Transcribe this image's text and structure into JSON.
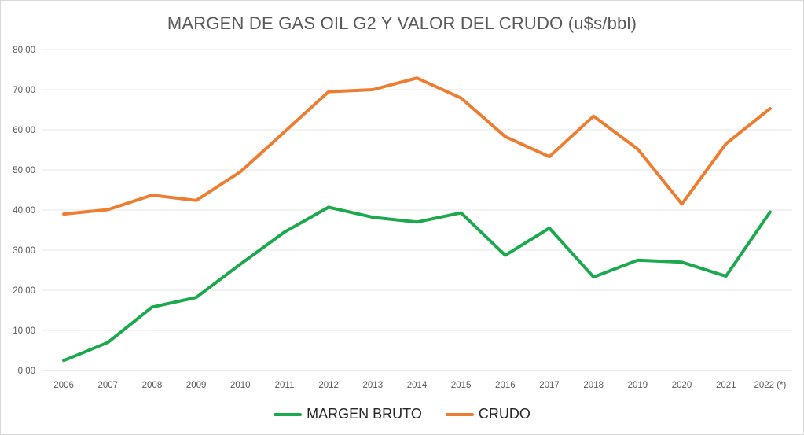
{
  "chart_data": {
    "type": "line",
    "title": "MARGEN DE GAS OIL G2 Y VALOR DEL CRUDO (u$s/bbl)",
    "categories": [
      "2006",
      "2007",
      "2008",
      "2009",
      "2010",
      "2011",
      "2012",
      "2013",
      "2014",
      "2015",
      "2016",
      "2017",
      "2018",
      "2019",
      "2020",
      "2021",
      "2022 (*)"
    ],
    "series": [
      {
        "name": "MARGEN BRUTO",
        "color": "#1CA94E",
        "values": [
          2.5,
          7.0,
          15.8,
          18.2,
          26.5,
          34.5,
          40.7,
          38.2,
          37.0,
          39.3,
          28.7,
          35.5,
          23.3,
          27.5,
          27.0,
          23.5,
          39.5
        ]
      },
      {
        "name": "CRUDO",
        "color": "#ED7D31",
        "values": [
          39.0,
          40.1,
          43.7,
          42.4,
          49.5,
          59.5,
          69.5,
          70.0,
          72.9,
          67.9,
          58.3,
          53.3,
          63.4,
          55.2,
          41.5,
          56.5,
          65.3
        ]
      }
    ],
    "ylim": [
      0,
      80
    ],
    "y_ticks": [
      "0.00",
      "10.00",
      "20.00",
      "30.00",
      "40.00",
      "50.00",
      "60.00",
      "70.00",
      "80.00"
    ],
    "xlabel": "",
    "ylabel": "",
    "grid": "horizontal",
    "legend_position": "bottom",
    "colors": {
      "gridline": "#E7E7E7",
      "axis_line": "#D9D9D9",
      "tick_text": "#595959",
      "title_text": "#595959",
      "legend_text": "#262626",
      "background": "#FFFFFF"
    }
  },
  "legend": {
    "items": [
      {
        "label": "MARGEN BRUTO"
      },
      {
        "label": "CRUDO"
      }
    ]
  }
}
